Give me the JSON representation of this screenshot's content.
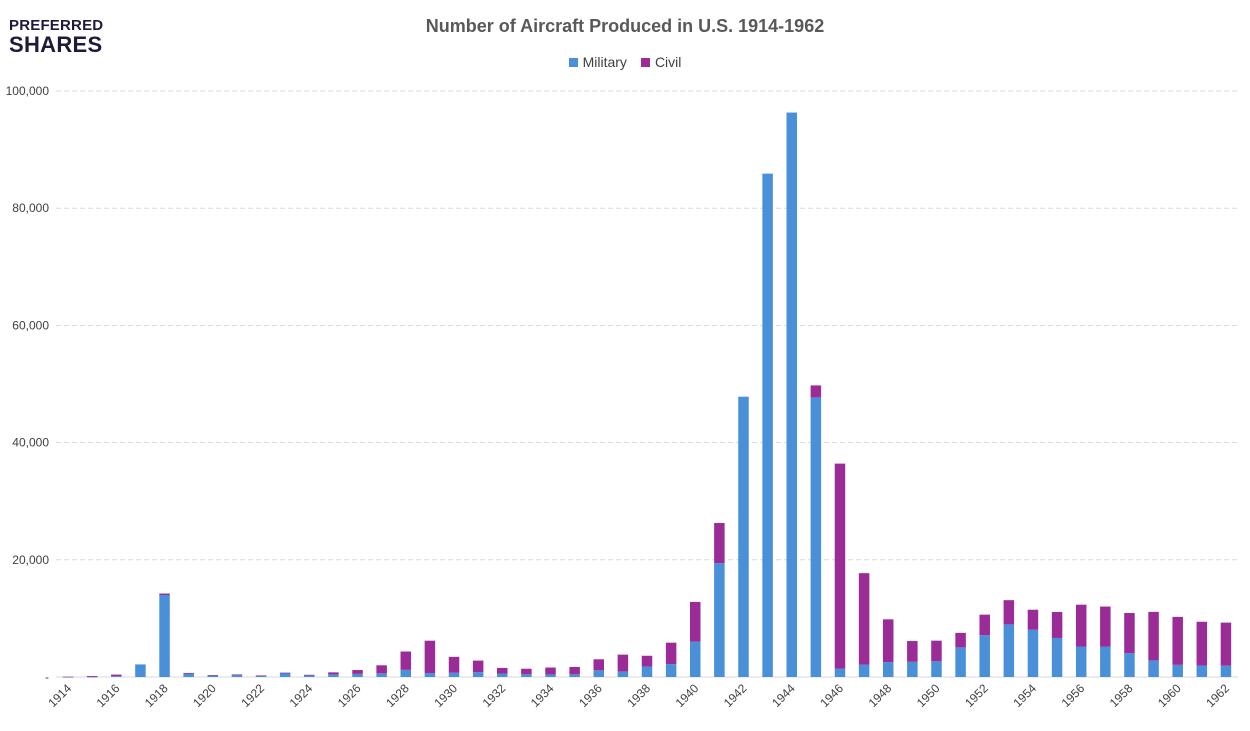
{
  "logo": {
    "line1": "PREFERRED",
    "line2": "SHARES"
  },
  "chart_data": {
    "type": "bar",
    "stacked": true,
    "title": "Number of Aircraft Produced in U.S. 1914-1962",
    "xlabel": "",
    "ylabel": "",
    "ylim": [
      0,
      100000
    ],
    "yticks": [
      0,
      20000,
      40000,
      60000,
      80000,
      100000
    ],
    "ytick_labels": [
      "-",
      "20,000",
      "40,000",
      "60,000",
      "80,000",
      "100,000"
    ],
    "grid": true,
    "legend_position": "top-center",
    "categories": [
      "1914",
      "1915",
      "1916",
      "1917",
      "1918",
      "1919",
      "1920",
      "1921",
      "1922",
      "1923",
      "1924",
      "1925",
      "1926",
      "1927",
      "1928",
      "1929",
      "1930",
      "1931",
      "1932",
      "1933",
      "1934",
      "1935",
      "1936",
      "1937",
      "1938",
      "1939",
      "1940",
      "1941",
      "1942",
      "1943",
      "1944",
      "1945",
      "1946",
      "1947",
      "1948",
      "1949",
      "1950",
      "1951",
      "1952",
      "1953",
      "1954",
      "1955",
      "1956",
      "1957",
      "1958",
      "1959",
      "1960",
      "1961",
      "1962"
    ],
    "x_labels_shown": [
      "1914",
      "1916",
      "1918",
      "1920",
      "1922",
      "1924",
      "1926",
      "1928",
      "1930",
      "1932",
      "1934",
      "1936",
      "1938",
      "1940",
      "1942",
      "1944",
      "1946",
      "1948",
      "1950",
      "1952",
      "1954",
      "1956",
      "1958",
      "1960",
      "1962"
    ],
    "series": [
      {
        "name": "Military",
        "color": "#4a90d9",
        "values": [
          15,
          26,
          142,
          2148,
          13991,
          682,
          256,
          389,
          226,
          687,
          317,
          447,
          532,
          621,
          1219,
          677,
          747,
          812,
          593,
          466,
          437,
          459,
          1141,
          949,
          1800,
          2195,
          6028,
          19433,
          47836,
          85898,
          96318,
          47714,
          1417,
          2100,
          2536,
          2592,
          2680,
          5055,
          7131,
          8978,
          8089,
          6664,
          5203,
          5198,
          4078,
          2834,
          2073,
          1973,
          1929
        ]
      },
      {
        "name": "Civil",
        "color": "#9b2b96",
        "values": [
          34,
          152,
          269,
          0,
          250,
          10,
          72,
          48,
          37,
          56,
          60,
          342,
          654,
          1374,
          3127,
          5516,
          2690,
          1988,
          956,
          944,
          1178,
          1251,
          1880,
          2868,
          1823,
          3661,
          6785,
          6844,
          0,
          0,
          0,
          2047,
          35000,
          15617,
          7302,
          3545,
          3520,
          2477,
          3509,
          4134,
          3389,
          4434,
          7138,
          6824,
          6840,
          8280,
          8183,
          7457,
          7350
        ]
      }
    ]
  }
}
